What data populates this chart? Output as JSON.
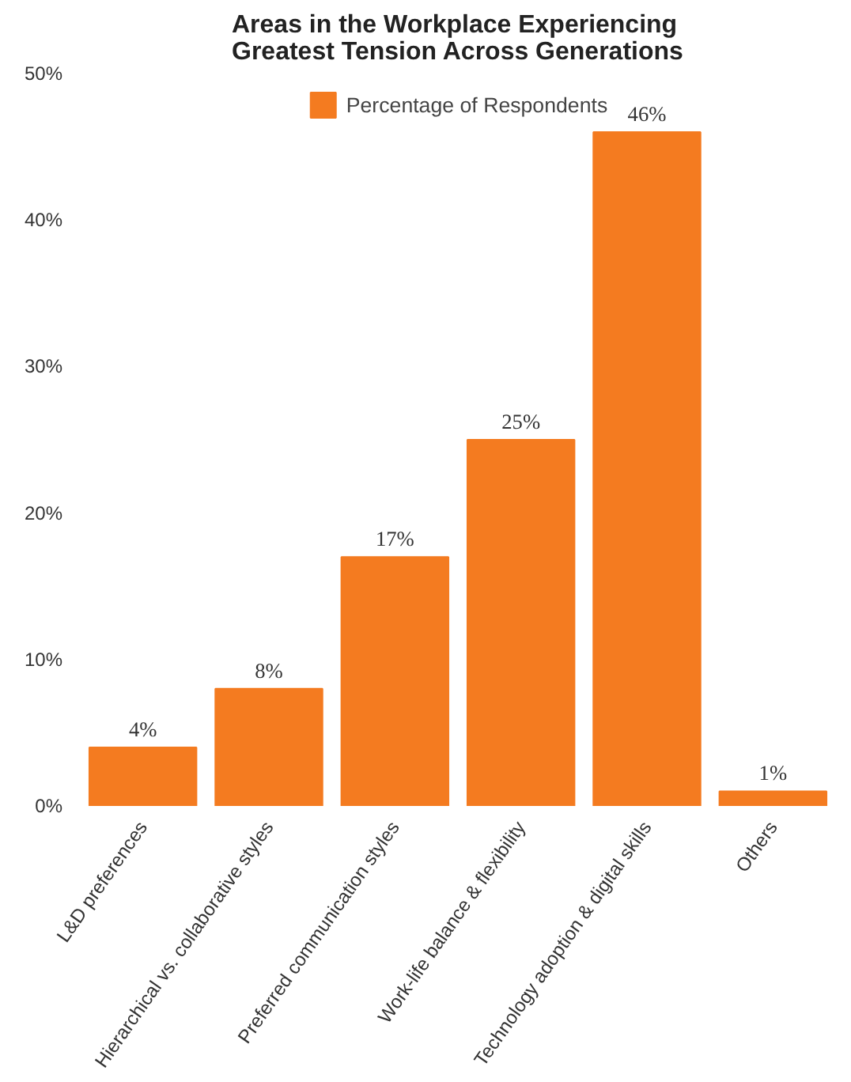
{
  "chart_data": {
    "type": "bar",
    "title": "Areas in the Workplace Experiencing Greatest Tension Across Generations",
    "categories": [
      "L&D preferences",
      "Hierarchical vs. collaborative styles",
      "Preferred communication styles",
      "Work-life balance & flexibility",
      "Technology adoption & digital skills",
      "Others"
    ],
    "series": [
      {
        "name": "Percentage of Respondents",
        "color": "#f47b20",
        "values": [
          4,
          8,
          17,
          25,
          46,
          1
        ],
        "value_labels": [
          "4%",
          "8%",
          "17%",
          "25%",
          "46%",
          "1%"
        ]
      }
    ],
    "ylim": [
      0,
      50
    ],
    "yticks": [
      {
        "value": 0,
        "label": "0%"
      },
      {
        "value": 10,
        "label": "10%"
      },
      {
        "value": 20,
        "label": "20%"
      },
      {
        "value": 30,
        "label": "30%"
      },
      {
        "value": 40,
        "label": "40%"
      },
      {
        "value": 50,
        "label": "50%"
      }
    ],
    "grid": false,
    "legend": "top"
  }
}
